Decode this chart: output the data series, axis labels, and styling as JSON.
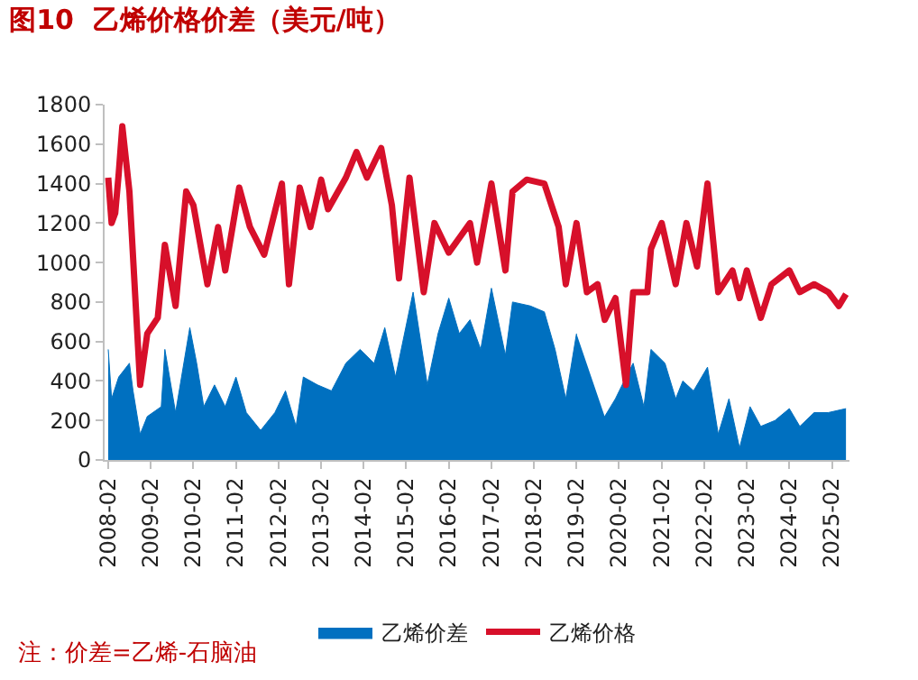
{
  "chart_data": {
    "type": "line",
    "title": "图10  乙烯价格价差（美元/吨）",
    "annotations": [
      "注：价差=乙烯-石脑油"
    ],
    "xlim": [
      "2008-01",
      "2025-07"
    ],
    "xticks": [
      "2008-02",
      "2009-02",
      "2010-02",
      "2011-02",
      "2012-02",
      "2013-02",
      "2014-02",
      "2015-02",
      "2016-02",
      "2017-02",
      "2018-02",
      "2019-02",
      "2020-02",
      "2021-02",
      "2022-02",
      "2023-02",
      "2024-02",
      "2025-02"
    ],
    "ylim": [
      0,
      1800
    ],
    "yticks": [
      0,
      200,
      400,
      600,
      800,
      1000,
      1200,
      1400,
      1600,
      1800
    ],
    "grid": false,
    "legend": "bottom",
    "series": [
      {
        "name": "乙烯价差",
        "type": "area",
        "color": "#0070c0",
        "x": [
          "2008-02",
          "2008-03",
          "2008-05",
          "2008-08",
          "2008-09",
          "2008-11",
          "2009-01",
          "2009-05",
          "2009-06",
          "2009-09",
          "2010-01",
          "2010-03",
          "2010-05",
          "2010-08",
          "2010-11",
          "2011-02",
          "2011-05",
          "2011-09",
          "2012-01",
          "2012-04",
          "2012-07",
          "2012-09",
          "2013-01",
          "2013-05",
          "2013-09",
          "2014-01",
          "2014-05",
          "2014-08",
          "2014-11",
          "2015-04",
          "2015-08",
          "2015-11",
          "2016-02",
          "2016-05",
          "2016-08",
          "2016-11",
          "2017-02",
          "2017-06",
          "2017-08",
          "2018-01",
          "2018-05",
          "2018-08",
          "2018-11",
          "2019-02",
          "2019-05",
          "2019-10",
          "2020-01",
          "2020-04",
          "2020-06",
          "2020-09",
          "2020-11",
          "2021-03",
          "2021-06",
          "2021-08",
          "2021-11",
          "2022-03",
          "2022-06",
          "2022-09",
          "2022-12",
          "2023-03",
          "2023-06",
          "2023-10",
          "2024-02",
          "2024-05",
          "2024-09",
          "2025-01",
          "2025-06"
        ],
        "values": [
          560,
          310,
          420,
          490,
          350,
          130,
          220,
          270,
          560,
          240,
          670,
          490,
          270,
          380,
          270,
          420,
          240,
          150,
          240,
          350,
          170,
          420,
          380,
          350,
          490,
          560,
          490,
          670,
          420,
          850,
          380,
          640,
          820,
          640,
          710,
          560,
          870,
          530,
          800,
          780,
          750,
          560,
          310,
          640,
          null,
          220,
          310,
          420,
          490,
          270,
          560,
          490,
          310,
          400,
          350,
          470,
          130,
          310,
          60,
          270,
          170,
          200,
          260,
          170,
          240,
          240,
          260
        ]
      },
      {
        "name": "乙烯价格",
        "type": "line",
        "color": "#d7102a",
        "x": [
          "2008-02",
          "2008-03",
          "2008-04",
          "2008-05",
          "2008-06",
          "2008-08",
          "2008-11",
          "2009-01",
          "2009-04",
          "2009-06",
          "2009-09",
          "2009-12",
          "2010-02",
          "2010-06",
          "2010-09",
          "2010-11",
          "2011-03",
          "2011-06",
          "2011-10",
          "2012-03",
          "2012-05",
          "2012-08",
          "2012-11",
          "2013-02",
          "2013-04",
          "2013-09",
          "2013-12",
          "2014-03",
          "2014-07",
          "2014-10",
          "2014-12",
          "2015-03",
          "2015-07",
          "2015-10",
          "2016-02",
          "2016-08",
          "2016-10",
          "2017-02",
          "2017-06",
          "2017-08",
          "2017-12",
          "2018-05",
          "2018-09",
          "2018-11",
          "2019-02",
          "2019-05",
          "2019-08",
          "2019-10",
          "2020-01",
          "2020-04",
          "2020-06",
          "2020-10",
          "2020-11",
          "2021-02",
          "2021-06",
          "2021-09",
          "2021-12",
          "2022-03",
          "2022-06",
          "2022-10",
          "2022-12",
          "2023-02",
          "2023-06",
          "2023-09",
          "2024-02",
          "2024-05",
          "2024-09",
          "2025-01",
          "2025-04",
          "2025-06"
        ],
        "values": [
          1430,
          1200,
          1250,
          1450,
          1690,
          1360,
          380,
          640,
          720,
          1090,
          780,
          1360,
          1290,
          890,
          1180,
          960,
          1380,
          1180,
          1040,
          1400,
          890,
          1380,
          1180,
          1420,
          1270,
          1430,
          1560,
          1430,
          1580,
          1290,
          920,
          1430,
          850,
          1200,
          1050,
          1200,
          1000,
          1400,
          960,
          1360,
          1420,
          1400,
          1180,
          890,
          1200,
          850,
          890,
          710,
          820,
          380,
          850,
          850,
          1070,
          1200,
          890,
          1200,
          980,
          1400,
          850,
          960,
          820,
          960,
          720,
          890,
          960,
          850,
          890,
          850,
          780,
          840
        ]
      }
    ]
  }
}
